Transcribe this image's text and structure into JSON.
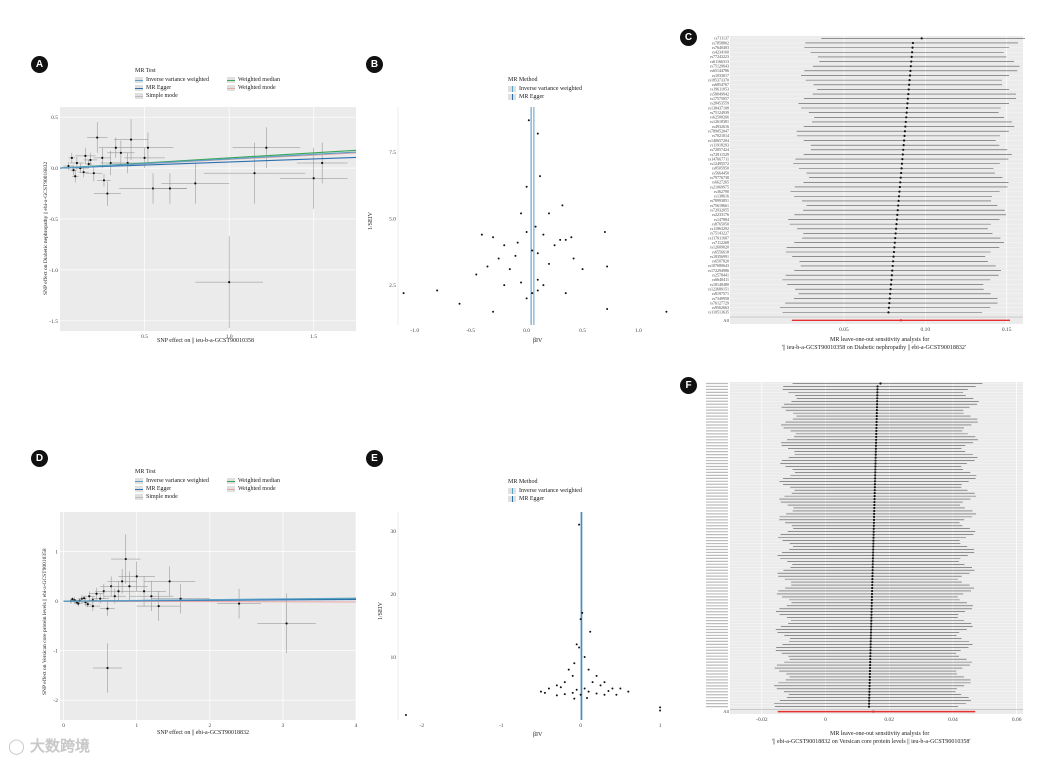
{
  "colors": {
    "ivw": "#5aa0c8",
    "egger": "#2e6fb0",
    "median": "#3aa655",
    "mode": "#e6a7a7",
    "simple": "#bbbbbb",
    "point": "#111111",
    "ci": "#7a7a7a",
    "red": "#e63030"
  },
  "watermark": "大数跨境",
  "chart_data": [
    {
      "id": "A",
      "type": "scatter",
      "legend_title": "MR Test",
      "legend": [
        "Inverse variance weighted",
        "MR Egger",
        "Simple mode",
        "Weighted median",
        "Weighted mode"
      ],
      "xlabel": "SNP effect on || ieu-b-a-GCST90010358",
      "ylabel": "SNP effect on Diabetic nephropathy || ebi-a-GCST90018832",
      "xlim": [
        0,
        1.75
      ],
      "ylim": [
        -1.6,
        0.6
      ],
      "xticks": [
        "0.5",
        "1.0",
        "1.5"
      ],
      "xtick_values": [
        0.5,
        1.0,
        1.5
      ],
      "yticks": [
        "0.5",
        "0.0",
        "-0.5",
        "-1.0",
        "-1.5"
      ],
      "ytick_values": [
        0.5,
        0.0,
        -0.5,
        -1.0,
        -1.5
      ],
      "lines": {
        "ivw": 0.09,
        "egger": 0.06,
        "median": 0.1,
        "mode": 0.085
      },
      "points": [
        [
          0.05,
          0.02,
          0.03,
          0.04
        ],
        [
          0.08,
          -0.02,
          0.02,
          0.05
        ],
        [
          0.1,
          0.05,
          0.04,
          0.06
        ],
        [
          0.12,
          0.0,
          0.05,
          0.05
        ],
        [
          0.15,
          0.12,
          0.06,
          0.08
        ],
        [
          0.18,
          0.08,
          0.04,
          0.07
        ],
        [
          0.2,
          -0.05,
          0.05,
          0.08
        ],
        [
          0.22,
          0.3,
          0.06,
          0.15
        ],
        [
          0.25,
          0.1,
          0.05,
          0.1
        ],
        [
          0.28,
          -0.25,
          0.08,
          0.12
        ],
        [
          0.3,
          0.05,
          0.06,
          0.12
        ],
        [
          0.33,
          0.2,
          0.1,
          0.1
        ],
        [
          0.36,
          0.15,
          0.08,
          0.12
        ],
        [
          0.4,
          0.05,
          0.1,
          0.1
        ],
        [
          0.42,
          0.28,
          0.1,
          0.2
        ],
        [
          0.5,
          0.1,
          0.12,
          0.1
        ],
        [
          0.52,
          0.2,
          0.15,
          0.15
        ],
        [
          0.55,
          -0.2,
          0.2,
          0.15
        ],
        [
          0.65,
          -0.2,
          0.1,
          0.15
        ],
        [
          0.8,
          -0.15,
          0.2,
          0.2
        ],
        [
          1.0,
          -1.12,
          0.2,
          0.45
        ],
        [
          1.15,
          -0.05,
          0.3,
          0.3
        ],
        [
          1.22,
          0.2,
          0.2,
          0.2
        ],
        [
          1.5,
          -0.1,
          0.2,
          0.3
        ],
        [
          1.55,
          0.05,
          0.15,
          0.2
        ],
        [
          0.07,
          0.1,
          0.02,
          0.05
        ],
        [
          0.09,
          -0.08,
          0.02,
          0.06
        ],
        [
          0.14,
          -0.04,
          0.03,
          0.05
        ],
        [
          0.17,
          0.04,
          0.02,
          0.04
        ],
        [
          0.26,
          -0.12,
          0.04,
          0.06
        ]
      ]
    },
    {
      "id": "B",
      "type": "funnel",
      "legend_title": "MR Method",
      "legend": [
        "Inverse variance weighted",
        "MR Egger"
      ],
      "xlabel": "βIV",
      "ylabel": "1/SEIV",
      "xlim": [
        -1.15,
        1.3
      ],
      "ylim": [
        1.0,
        9.2
      ],
      "xticks": [
        "-1.0",
        "-0.5",
        "0.0",
        "0.5",
        "1.0"
      ],
      "xtick_values": [
        -1.0,
        -0.5,
        0.0,
        0.5,
        1.0
      ],
      "yticks": [
        "7.5",
        "5.0",
        "2.5"
      ],
      "ytick_values": [
        7.5,
        5.0,
        2.5
      ],
      "vlines": {
        "ivw": 0.065,
        "egger": 0.04
      },
      "points": [
        [
          0.02,
          8.7
        ],
        [
          0.1,
          8.2
        ],
        [
          0.12,
          6.6
        ],
        [
          0.0,
          6.2
        ],
        [
          0.32,
          5.5
        ],
        [
          0.2,
          5.2
        ],
        [
          -0.05,
          5.2
        ],
        [
          0.08,
          4.7
        ],
        [
          0.0,
          4.5
        ],
        [
          0.15,
          4.4
        ],
        [
          0.4,
          4.3
        ],
        [
          -0.3,
          4.3
        ],
        [
          -0.4,
          4.4
        ],
        [
          0.7,
          4.5
        ],
        [
          0.3,
          4.2
        ],
        [
          0.35,
          4.2
        ],
        [
          -0.2,
          4.0
        ],
        [
          0.25,
          4.0
        ],
        [
          0.05,
          3.8
        ],
        [
          0.1,
          3.7
        ],
        [
          -0.1,
          3.6
        ],
        [
          -0.25,
          3.5
        ],
        [
          0.2,
          3.3
        ],
        [
          0.5,
          3.1
        ],
        [
          0.72,
          3.2
        ],
        [
          -0.15,
          3.1
        ],
        [
          -0.35,
          3.2
        ],
        [
          -0.45,
          2.9
        ],
        [
          0.1,
          2.7
        ],
        [
          -0.05,
          2.6
        ],
        [
          0.15,
          2.5
        ],
        [
          0.05,
          2.2
        ],
        [
          0.35,
          2.2
        ],
        [
          0.0,
          2.0
        ],
        [
          -0.2,
          2.5
        ],
        [
          -0.8,
          2.3
        ],
        [
          -1.1,
          2.2
        ],
        [
          -0.6,
          1.8
        ],
        [
          -0.3,
          1.5
        ],
        [
          0.72,
          1.6
        ],
        [
          1.25,
          1.5
        ],
        [
          0.1,
          2.3
        ],
        [
          0.42,
          3.5
        ],
        [
          -0.08,
          4.1
        ]
      ]
    },
    {
      "id": "C",
      "type": "forest",
      "xlabel": "MR leave-one-out sensitivity analysis for",
      "xlabel2": "'|| ieu-b-a-GCST90010358 on Diabetic nephropathy || ebi-a-GCST90018832'",
      "xlim": [
        -0.02,
        0.16
      ],
      "xticks": [
        "0.05",
        "0.10",
        "0.15"
      ],
      "xtick_values": [
        0.05,
        0.1,
        0.15
      ],
      "all_label": "All",
      "all": {
        "est": 0.085,
        "lo": 0.018,
        "hi": 0.152
      },
      "snps": [
        "rs711137",
        "rs7858802",
        "rs7640403",
        "rs4234160",
        "rs77243223",
        "rs61166313",
        "rs75129643",
        "rs65144786",
        "rs1033017",
        "rs185373370",
        "rs6854767",
        "rs19611053",
        "rs58049942",
        "rs17575057",
        "rs28453559",
        "rs138437108",
        "rs75124939",
        "rs62508266",
        "rs12618381",
        "rs4932616",
        "rs789052047",
        "rs7021014",
        "rs140657204",
        "rs11918293",
        "rs72057424",
        "rs72911529",
        "rs147667711",
        "rs12495572",
        "rs8505950",
        "rs5664450",
        "rs79776738",
        "rs6627265",
        "rs21069975",
        "rs362790",
        "rs138616",
        "rs78993851",
        "rs75618661",
        "rs72932055",
        "rs2233176",
        "rs147884",
        "rs8765050",
        "rs11863292",
        "rs75143227",
        "rs117011687",
        "rs7112268",
        "rs12609020",
        "rs6556618",
        "rs18356991",
        "rs6507820",
        "rs107680643",
        "rs172294986",
        "rs2578441",
        "rs6640411",
        "rs18148480",
        "rs123680151",
        "rs8197571",
        "rs7349958",
        "rs76127729",
        "rs9562663",
        "rs110513635"
      ]
    },
    {
      "id": "D",
      "type": "scatter",
      "legend_title": "MR Test",
      "legend": [
        "Inverse variance weighted",
        "MR Egger",
        "Simple mode",
        "Weighted median",
        "Weighted mode"
      ],
      "xlabel": "SNP effect on || ebi-a-GCST90018832",
      "ylabel": "SNP effect on Versican core protein levels || ebi-a-GCST90010358",
      "xlim": [
        -0.05,
        4.0
      ],
      "ylim": [
        -2.4,
        1.8
      ],
      "xticks": [
        "0",
        "1",
        "2",
        "3",
        "4"
      ],
      "xtick_values": [
        0,
        1,
        2,
        3,
        4
      ],
      "yticks": [
        "1",
        "0",
        "-1",
        "-2"
      ],
      "ytick_values": [
        1,
        0,
        -1,
        -2
      ],
      "lines": {
        "ivw": 0.015,
        "egger": 0.008,
        "median": 0.012,
        "mode": -0.004
      },
      "points": [
        [
          0.1,
          0.0,
          0.04,
          0.05
        ],
        [
          0.15,
          0.02,
          0.05,
          0.06
        ],
        [
          0.2,
          -0.05,
          0.06,
          0.06
        ],
        [
          0.25,
          0.05,
          0.05,
          0.08
        ],
        [
          0.3,
          -0.02,
          0.05,
          0.07
        ],
        [
          0.35,
          0.1,
          0.08,
          0.1
        ],
        [
          0.4,
          -0.1,
          0.1,
          0.1
        ],
        [
          0.45,
          0.15,
          0.1,
          0.12
        ],
        [
          0.5,
          0.05,
          0.12,
          0.1
        ],
        [
          0.55,
          0.2,
          0.12,
          0.15
        ],
        [
          0.6,
          -0.15,
          0.1,
          0.15
        ],
        [
          0.65,
          0.3,
          0.15,
          0.2
        ],
        [
          0.7,
          0.1,
          0.15,
          0.15
        ],
        [
          0.75,
          0.2,
          0.2,
          0.2
        ],
        [
          0.8,
          0.4,
          0.2,
          0.25
        ],
        [
          0.85,
          0.85,
          0.2,
          0.5
        ],
        [
          0.9,
          0.3,
          0.25,
          0.3
        ],
        [
          1.0,
          0.5,
          0.25,
          0.3
        ],
        [
          1.1,
          0.2,
          0.3,
          0.3
        ],
        [
          1.2,
          0.1,
          0.3,
          0.3
        ],
        [
          1.3,
          -0.1,
          0.3,
          0.3
        ],
        [
          1.45,
          0.4,
          0.35,
          0.3
        ],
        [
          1.6,
          0.05,
          0.4,
          0.3
        ],
        [
          0.6,
          -1.35,
          0.2,
          0.5
        ],
        [
          2.4,
          -0.05,
          0.3,
          0.3
        ],
        [
          3.05,
          -0.45,
          0.4,
          0.6
        ],
        [
          0.12,
          0.04,
          0.03,
          0.04
        ],
        [
          0.18,
          -0.02,
          0.04,
          0.05
        ],
        [
          0.22,
          0.01,
          0.03,
          0.04
        ],
        [
          0.28,
          0.06,
          0.04,
          0.05
        ],
        [
          0.33,
          -0.06,
          0.05,
          0.06
        ],
        [
          0.4,
          0.02,
          0.06,
          0.07
        ]
      ]
    },
    {
      "id": "E",
      "type": "funnel",
      "legend_title": "MR Method",
      "legend": [
        "Inverse variance weighted",
        "MR Egger"
      ],
      "xlabel": "βIV",
      "ylabel": "1/SEIV",
      "xlim": [
        -2.3,
        1.15
      ],
      "ylim": [
        0,
        33
      ],
      "xticks": [
        "-2",
        "-1",
        "0",
        "1"
      ],
      "xtick_values": [
        -2,
        -1,
        0,
        1
      ],
      "yticks": [
        "30",
        "20",
        "10"
      ],
      "ytick_values": [
        30,
        20,
        10
      ],
      "vlines": {
        "ivw": 0.015,
        "egger": 0.005
      },
      "points": [
        [
          -0.02,
          31
        ],
        [
          0.02,
          17
        ],
        [
          0.0,
          16
        ],
        [
          0.12,
          14
        ],
        [
          -0.05,
          12
        ],
        [
          -0.02,
          11.5
        ],
        [
          0.05,
          10
        ],
        [
          -0.08,
          9
        ],
        [
          -0.15,
          8
        ],
        [
          0.1,
          8
        ],
        [
          0.2,
          7
        ],
        [
          -0.1,
          7
        ],
        [
          0.15,
          6
        ],
        [
          -0.2,
          6
        ],
        [
          0.3,
          6
        ],
        [
          -0.3,
          5.5
        ],
        [
          0.4,
          5
        ],
        [
          -0.4,
          5
        ],
        [
          0.5,
          5
        ],
        [
          -0.5,
          4.5
        ],
        [
          0.05,
          5
        ],
        [
          -0.05,
          4.8
        ],
        [
          0.1,
          4.5
        ],
        [
          -0.1,
          4.3
        ],
        [
          0.2,
          4.2
        ],
        [
          -0.2,
          4.1
        ],
        [
          0.3,
          4.0
        ],
        [
          -0.3,
          3.9
        ],
        [
          0.45,
          4
        ],
        [
          -0.45,
          4.3
        ],
        [
          0.0,
          4.0
        ],
        [
          0.08,
          3.5
        ],
        [
          -0.08,
          3.4
        ],
        [
          0.6,
          4.5
        ],
        [
          1.0,
          2
        ],
        [
          1.0,
          1.5
        ],
        [
          -2.2,
          0.8
        ],
        [
          0.25,
          5.5
        ],
        [
          -0.25,
          5.2
        ],
        [
          0.35,
          4.6
        ]
      ]
    },
    {
      "id": "F",
      "type": "forest",
      "xlabel": "MR leave-one-out sensitivity analysis for",
      "xlabel2": "'|| ebi-a-GCST90018832 on Versican core protein levels || ieu-b-a-GCST90010358'",
      "xlim": [
        -0.03,
        0.062
      ],
      "xticks": [
        "-0.02",
        "0",
        "0.02",
        "0.04",
        "0.06"
      ],
      "xtick_values": [
        -0.02,
        0.0,
        0.02,
        0.04,
        0.06
      ],
      "all_label": "All",
      "all": {
        "est": 0.015,
        "lo": -0.015,
        "hi": 0.047
      },
      "snp_count": 110
    }
  ]
}
